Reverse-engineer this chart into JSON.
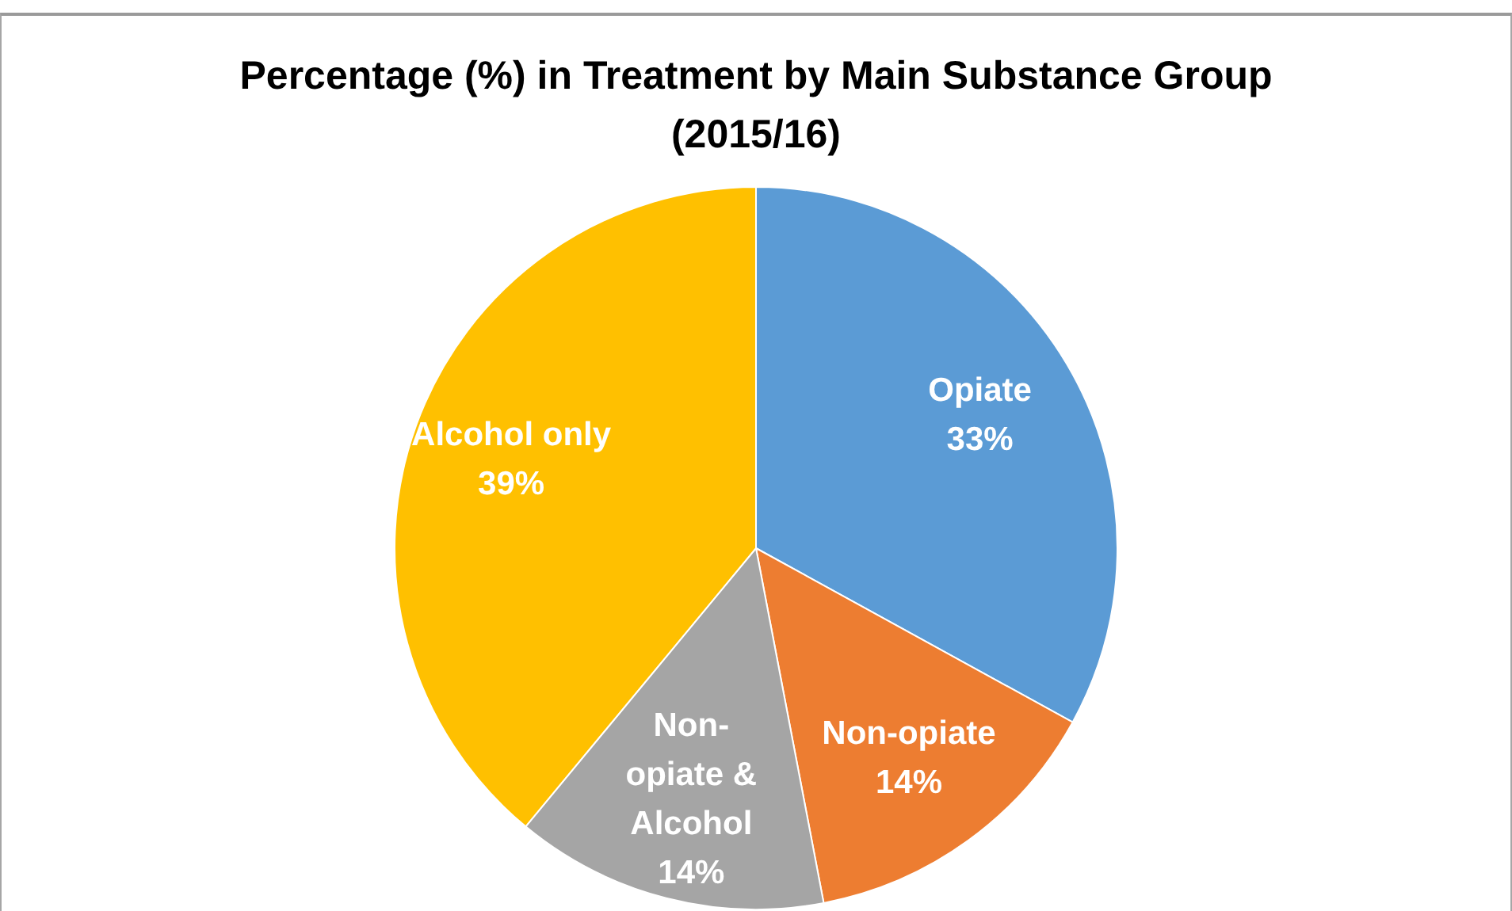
{
  "chart_data": {
    "type": "pie",
    "title": "Percentage (%) in Treatment by Main Substance Group (2015/16)",
    "categories": [
      "Opiate",
      "Non-opiate",
      "Non-opiate & Alcohol",
      "Alcohol only"
    ],
    "values": [
      33,
      14,
      14,
      39
    ],
    "colors": [
      "#5b9bd5",
      "#ed7d31",
      "#a5a5a5",
      "#ffc000"
    ],
    "value_labels": [
      "33%",
      "14%",
      "14%",
      "39%"
    ]
  }
}
